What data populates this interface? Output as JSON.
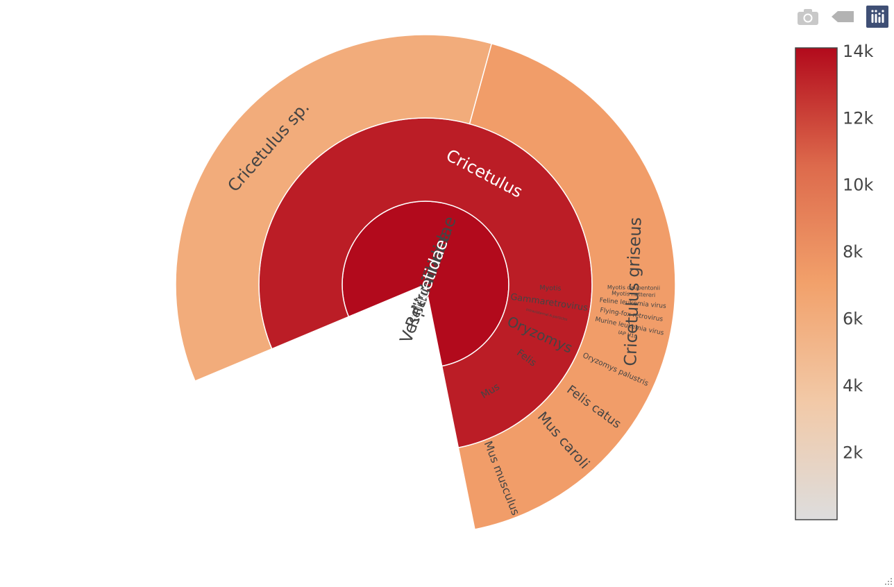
{
  "modebar": {
    "camera_icon": "camera-icon",
    "zoom_icon": "arrow-back-icon",
    "logo_icon": "plotly-logo-icon"
  },
  "chart_data": {
    "type": "sunburst",
    "root": {
      "label": "Cricetidae",
      "value": 14100,
      "children": [
        {
          "label": "Cricetulus",
          "value": 13400,
          "children": [
            {
              "label": "Cricetulus griseus",
              "value": 7300
            },
            {
              "label": "Cricetulus sp.",
              "value": 6100
            }
          ]
        }
      ]
    },
    "siblings": [
      {
        "label": "Vespertilionidae",
        "value": 180,
        "children": [
          {
            "label": "Myotis",
            "value": 180,
            "children": [
              {
                "label": "Myotis nattereri",
                "value": 90
              },
              {
                "label": "Myotis daubentonii",
                "value": 90
              }
            ]
          }
        ]
      },
      {
        "label": "Retroviridae",
        "value": 560,
        "children": [
          {
            "label": "Intracisternal A-particles",
            "value": 80,
            "children": [
              {
                "label": "IAP H10",
                "value": 80
              }
            ]
          },
          {
            "label": "Gammaretrovirus",
            "value": 480,
            "children": [
              {
                "label": "Murine leukemia virus",
                "value": 160
              },
              {
                "label": "Flying-fox retrovirus",
                "value": 160
              },
              {
                "label": "Feline leukemia virus",
                "value": 160
              }
            ]
          }
        ]
      },
      {
        "label": "Muridae",
        "value": 3200,
        "children": [
          {
            "label": "Mus",
            "value": 2000,
            "children": [
              {
                "label": "Mus musculus",
                "value": 1000
              },
              {
                "label": "Mus caroli",
                "value": 1000
              }
            ]
          },
          {
            "label": "Felis",
            "value": 260,
            "children": [
              {
                "label": "Felis catus",
                "value": 260
              }
            ]
          },
          {
            "label": "Oryzomys",
            "value": 940,
            "children": [
              {
                "label": "Oryzomys palustris",
                "value": 940
              }
            ]
          }
        ]
      }
    ],
    "colorscale": {
      "min": 0,
      "max": 14100,
      "stops": [
        [
          "0",
          "#dddddd"
        ],
        [
          "0.25",
          "#f2c9a7"
        ],
        [
          "0.5",
          "#f2a16b"
        ],
        [
          "0.75",
          "#dd6a4c"
        ],
        [
          "1",
          "#b20a1c"
        ]
      ],
      "tick_labels": [
        "2k",
        "4k",
        "6k",
        "8k",
        "10k",
        "12k",
        "14k"
      ],
      "tick_values": [
        2000,
        4000,
        6000,
        8000,
        10000,
        12000,
        14000
      ]
    }
  }
}
